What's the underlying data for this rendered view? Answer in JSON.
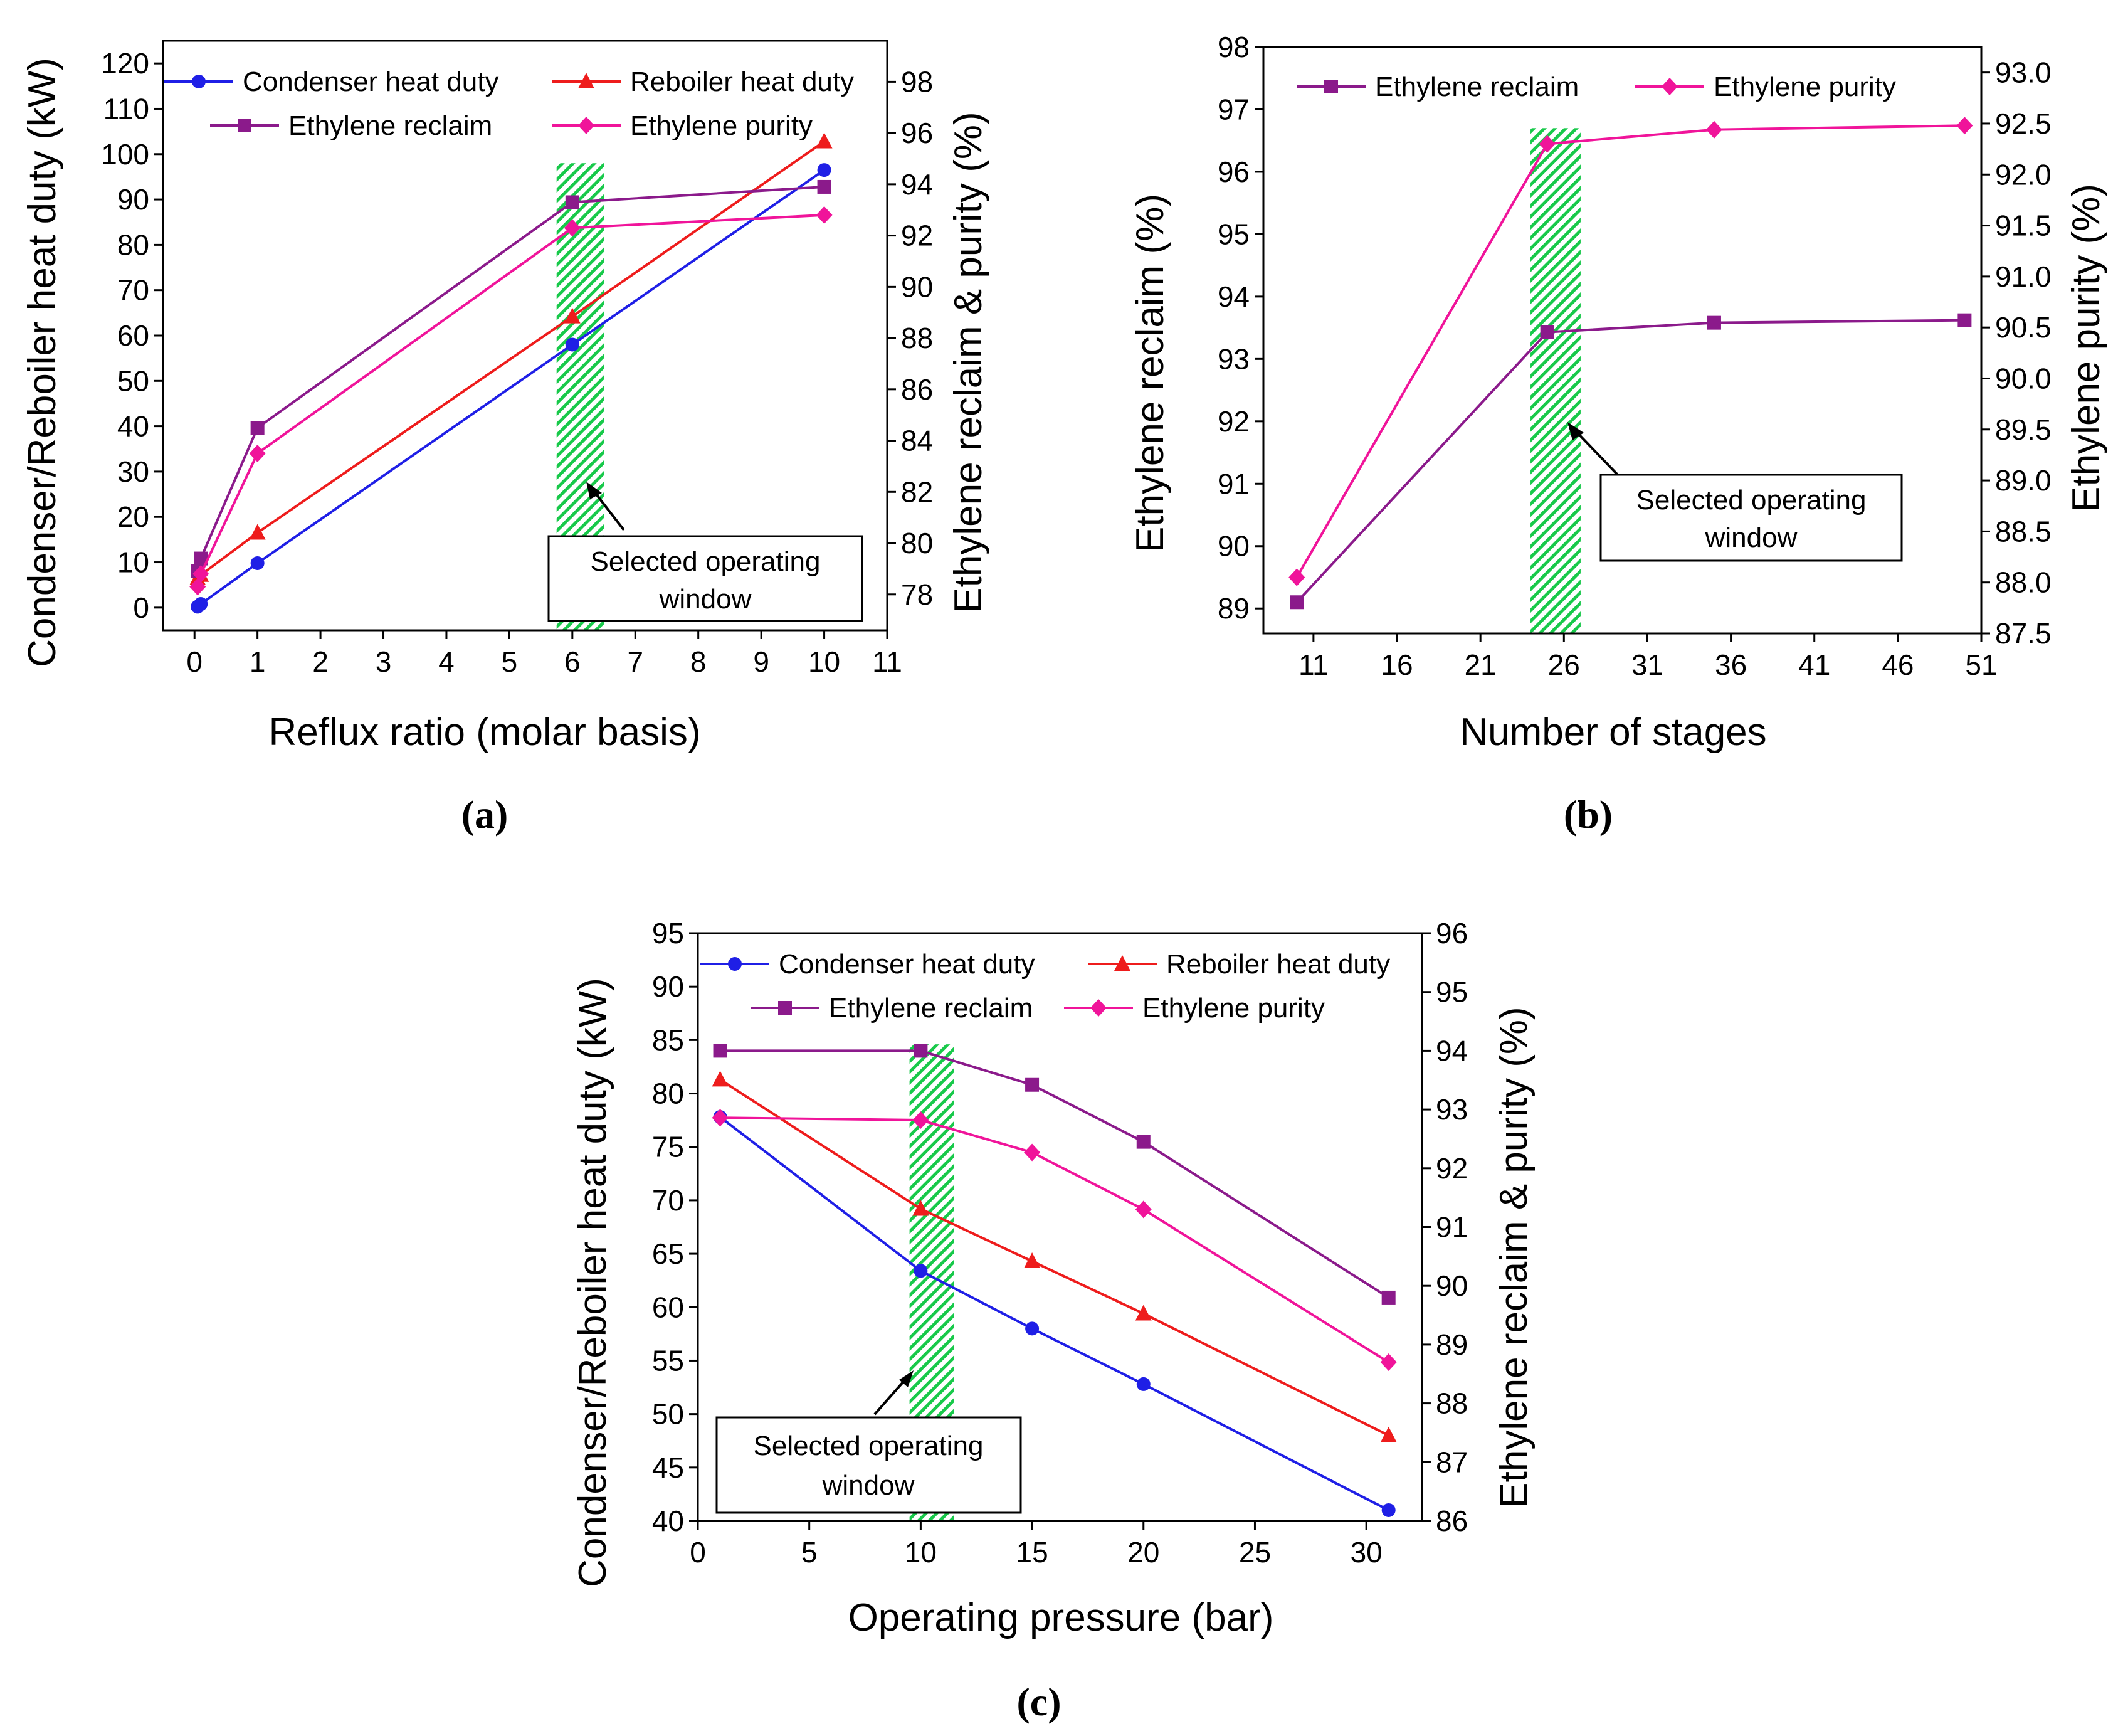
{
  "panels": {
    "a": {
      "caption": "(a)",
      "xlabel": "Reflux ratio (molar basis)",
      "ylabel_left": "Condenser/Reboiler heat duty (kW)",
      "ylabel_right": "Ethylene reclaim & purity (%)",
      "annotation_line1": "Selected operating",
      "annotation_line2": "window"
    },
    "b": {
      "caption": "(b)",
      "xlabel": "Number of stages",
      "ylabel_left": "Ethylene reclaim (%)",
      "ylabel_right": "Ethylene purity (%)",
      "annotation_line1": "Selected operating",
      "annotation_line2": "window"
    },
    "c": {
      "caption": "(c)",
      "xlabel": "Operating pressure (bar)",
      "ylabel_left": "Condenser/Reboiler heat duty (kW)",
      "ylabel_right": "Ethylene reclaim & purity (%)",
      "annotation_line1": "Selected operating",
      "annotation_line2": "window"
    }
  },
  "colors": {
    "condenser": "#1f1fe6",
    "reboiler": "#ee1c1c",
    "reclaim": "#8b1a8b",
    "purity": "#f0149a",
    "window": "#18c94a"
  },
  "chart_data": [
    {
      "id": "a",
      "type": "line",
      "xlabel": "Reflux ratio (molar basis)",
      "ylabel": "Condenser/Reboiler heat duty (kW)",
      "y2label": "Ethylene reclaim & purity (%)",
      "xlim": [
        -0.5,
        11
      ],
      "xticks": [
        0,
        1,
        2,
        3,
        4,
        5,
        6,
        7,
        8,
        9,
        10,
        11
      ],
      "ylim": [
        -5,
        125
      ],
      "yticks": [
        0,
        10,
        20,
        30,
        40,
        50,
        60,
        70,
        80,
        90,
        100,
        110,
        120
      ],
      "y2lim": [
        76.6,
        99.6
      ],
      "y2ticks": [
        78,
        80,
        82,
        84,
        86,
        88,
        90,
        92,
        94,
        96,
        98
      ],
      "highlight_x": [
        5.75,
        6.5
      ],
      "highlight_y": [
        -5,
        98
      ],
      "legend_placement": "top",
      "series": [
        {
          "name": "Condenser heat duty",
          "axis": "left",
          "marker": "circle",
          "color": "#1f1fe6",
          "x": [
            0.05,
            0.1,
            1,
            6,
            10
          ],
          "y": [
            0.2,
            0.8,
            9.8,
            58,
            96.5
          ]
        },
        {
          "name": "Reboiler heat duty",
          "axis": "left",
          "marker": "triangle",
          "color": "#ee1c1c",
          "x": [
            0.05,
            0.1,
            1,
            6,
            10
          ],
          "y": [
            6.5,
            7.2,
            16.5,
            64.2,
            102.8
          ]
        },
        {
          "name": "Ethylene reclaim",
          "axis": "right",
          "marker": "square",
          "color": "#8b1a8b",
          "x": [
            0.05,
            0.1,
            1,
            6,
            10
          ],
          "y": [
            78.9,
            79.4,
            84.5,
            93.3,
            93.9
          ]
        },
        {
          "name": "Ethylene purity",
          "axis": "right",
          "marker": "diamond",
          "color": "#f0149a",
          "x": [
            0.05,
            0.1,
            1,
            6,
            10
          ],
          "y": [
            78.3,
            78.8,
            83.5,
            92.3,
            92.8
          ]
        }
      ]
    },
    {
      "id": "b",
      "type": "line",
      "xlabel": "Number of stages",
      "ylabel": "Ethylene reclaim (%)",
      "y2label": "Ethylene purity (%)",
      "xlim": [
        8,
        51
      ],
      "xticks": [
        11,
        16,
        21,
        26,
        31,
        36,
        41,
        46,
        51
      ],
      "ylim": [
        88.6,
        98
      ],
      "yticks": [
        89,
        90,
        91,
        92,
        93,
        94,
        95,
        96,
        97,
        98
      ],
      "y2lim": [
        87.5,
        93.25
      ],
      "y2ticks": [
        87.5,
        88.0,
        88.5,
        89.0,
        89.5,
        90.0,
        90.5,
        91.0,
        91.5,
        92.0,
        92.5,
        93.0
      ],
      "y2tick_labels": [
        "87.5",
        "88.0",
        "88.5",
        "89.0",
        "89.5",
        "90.0",
        "90.5",
        "91.0",
        "91.5",
        "92.0",
        "92.5",
        "93.0"
      ],
      "highlight_x": [
        24,
        27
      ],
      "highlight_y": [
        88.6,
        96.7
      ],
      "legend_placement": "top",
      "series": [
        {
          "name": "Ethylene reclaim",
          "axis": "left",
          "marker": "square",
          "color": "#8b1a8b",
          "x": [
            10,
            25,
            35,
            50
          ],
          "y": [
            89.1,
            93.43,
            93.58,
            93.62
          ]
        },
        {
          "name": "Ethylene purity",
          "axis": "right",
          "marker": "diamond",
          "color": "#f0149a",
          "x": [
            10,
            25,
            35,
            50
          ],
          "y": [
            88.05,
            92.3,
            92.44,
            92.48
          ]
        }
      ]
    },
    {
      "id": "c",
      "type": "line",
      "xlabel": "Operating pressure (bar)",
      "ylabel": "Condenser/Reboiler heat duty (kW)",
      "y2label": "Ethylene reclaim & purity (%)",
      "xlim": [
        0,
        32.5
      ],
      "xticks": [
        0,
        5,
        10,
        15,
        20,
        25,
        30
      ],
      "ylim": [
        40,
        95
      ],
      "yticks": [
        40,
        45,
        50,
        55,
        60,
        65,
        70,
        75,
        80,
        85,
        90,
        95
      ],
      "y2lim": [
        86,
        96
      ],
      "y2ticks": [
        86,
        87,
        88,
        89,
        90,
        91,
        92,
        93,
        94,
        95,
        96
      ],
      "highlight_x": [
        9.5,
        11.5
      ],
      "highlight_y": [
        40,
        84.6
      ],
      "legend_placement": "top",
      "series": [
        {
          "name": "Condenser heat duty",
          "axis": "left",
          "marker": "circle",
          "color": "#1f1fe6",
          "x": [
            1,
            10,
            15,
            20,
            31
          ],
          "y": [
            77.8,
            63.4,
            58.0,
            52.8,
            41.0
          ]
        },
        {
          "name": "Reboiler heat duty",
          "axis": "left",
          "marker": "triangle",
          "color": "#ee1c1c",
          "x": [
            1,
            10,
            15,
            20,
            31
          ],
          "y": [
            81.3,
            69.2,
            64.3,
            59.4,
            48.0
          ]
        },
        {
          "name": "Ethylene reclaim",
          "axis": "right",
          "marker": "square",
          "color": "#8b1a8b",
          "x": [
            1,
            10,
            15,
            20,
            31
          ],
          "y": [
            94.0,
            94.0,
            93.42,
            92.45,
            89.8
          ]
        },
        {
          "name": "Ethylene purity",
          "axis": "right",
          "marker": "diamond",
          "color": "#f0149a",
          "x": [
            1,
            10,
            15,
            20,
            31
          ],
          "y": [
            92.86,
            92.82,
            92.27,
            91.3,
            88.7
          ]
        }
      ]
    }
  ]
}
